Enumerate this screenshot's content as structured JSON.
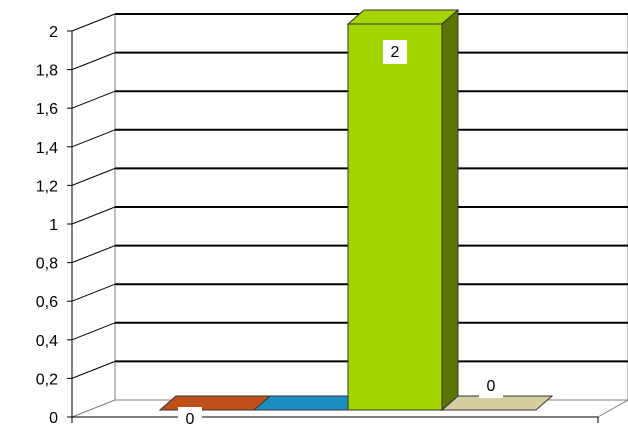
{
  "chart_data": {
    "type": "bar",
    "categories": [
      "",
      "",
      "",
      ""
    ],
    "values": [
      0,
      0,
      2,
      0
    ],
    "series_colors": [
      "#C0501A",
      "#1C8FC0",
      "#A4D400",
      "#D4CDA0"
    ],
    "ylim": [
      0,
      2
    ],
    "yticks": [
      "0",
      "0,2",
      "0,4",
      "0,6",
      "0,8",
      "1",
      "1,2",
      "1,4",
      "1,6",
      "1,8",
      "2"
    ],
    "data_labels": [
      "0",
      "",
      "2",
      "0"
    ],
    "xlabel": "",
    "ylabel": "",
    "title": "",
    "grid": true
  }
}
